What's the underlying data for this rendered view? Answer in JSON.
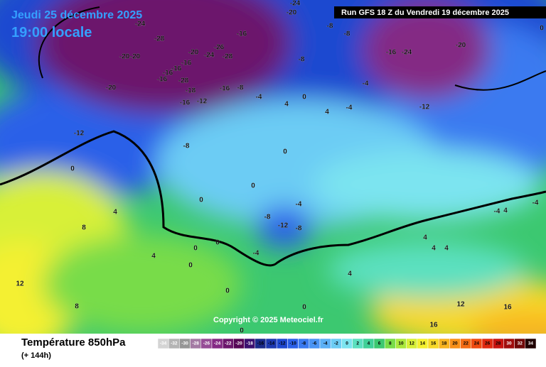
{
  "header": {
    "date": "Jeudi 25 décembre 2025",
    "time": "19:00 locale"
  },
  "run": "Run GFS 18 Z du Vendredi 19 décembre 2025",
  "copyright": "Copyright © 2025 Meteociel.fr",
  "footer": {
    "title": "Température 850hPa",
    "lead": "(+ 144h)"
  },
  "scale": {
    "values": [
      -34,
      -32,
      -30,
      -28,
      -26,
      -24,
      -22,
      -20,
      -18,
      -16,
      -14,
      -12,
      -10,
      -8,
      -6,
      -4,
      -2,
      0,
      2,
      4,
      6,
      8,
      10,
      12,
      14,
      16,
      18,
      20,
      22,
      24,
      26,
      28,
      30,
      32,
      34
    ],
    "colors": [
      "#d4d4d4",
      "#b4b4b4",
      "#969696",
      "#a47aa4",
      "#964c96",
      "#842a84",
      "#6c166c",
      "#560656",
      "#3c1070",
      "#1a2a8a",
      "#1c38b0",
      "#1e48d0",
      "#2a60e8",
      "#3a7af0",
      "#4a94f4",
      "#5cb0f6",
      "#6cccf4",
      "#7ce4f0",
      "#5ce0c0",
      "#40d098",
      "#3cc870",
      "#78dc48",
      "#aae83c",
      "#d8f038",
      "#f4f030",
      "#f8d828",
      "#f8b420",
      "#f89018",
      "#f46c14",
      "#ee4a10",
      "#e02a10",
      "#c81410",
      "#a00c0c",
      "#700808",
      "#200000"
    ]
  },
  "map_labels": [
    -20,
    -24,
    -24,
    -28,
    -16,
    -20,
    -20,
    -20,
    -24,
    -26,
    -28,
    -16,
    -16,
    -16,
    -16,
    -28,
    -18,
    -16,
    -8,
    -20,
    -16,
    -12,
    -4,
    -8,
    -8,
    -8,
    -16,
    -24,
    -20,
    -12,
    -12,
    -8,
    0,
    4,
    0,
    -4,
    -4,
    4,
    0,
    0,
    0,
    4,
    8,
    -8,
    -12,
    -8,
    -4,
    0,
    0,
    4,
    0,
    -4,
    4,
    12,
    0,
    8,
    0,
    0,
    4,
    4,
    16,
    12,
    16,
    4,
    -4,
    -4,
    4,
    0
  ]
}
